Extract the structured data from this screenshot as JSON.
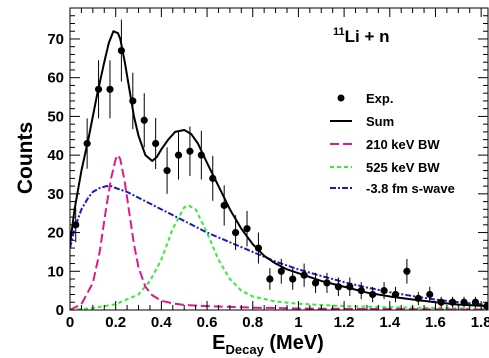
{
  "chart_data": {
    "type": "line",
    "title": "",
    "annotation": {
      "mass": "11",
      "label": "Li + n"
    },
    "xlabel": {
      "main": "E",
      "sub": "Decay",
      "unit": " (MeV)"
    },
    "ylabel": "Counts",
    "xlim": [
      0,
      1.83
    ],
    "ylim": [
      0,
      78
    ],
    "xticks": [
      0,
      0.2,
      0.4,
      0.6,
      0.8,
      1,
      1.2,
      1.4,
      1.6,
      1.8
    ],
    "yticks": [
      0,
      10,
      20,
      30,
      40,
      50,
      60,
      70
    ],
    "xtick_labels": [
      "0",
      "0.2",
      "0.4",
      "0.6",
      "0.8",
      "1",
      "1.2",
      "1.4",
      "1.6",
      "1.8"
    ],
    "ytick_labels": [
      "0",
      "10",
      "20",
      "30",
      "40",
      "50",
      "60",
      "70"
    ],
    "legend_position": "right",
    "legend": [
      {
        "name": "Exp.",
        "marker": "point"
      },
      {
        "name": "Sum",
        "style": "solid",
        "color": "#000000"
      },
      {
        "name": "210 keV BW",
        "style": "long-dash",
        "color": "#e0198b"
      },
      {
        "name": "525 keV BW",
        "style": "dash",
        "color": "#33ee33"
      },
      {
        "name": "-3.8 fm s-wave",
        "style": "dash-dot",
        "color": "#1a1acc"
      }
    ],
    "experimental": {
      "x": [
        0.025,
        0.075,
        0.125,
        0.175,
        0.225,
        0.275,
        0.325,
        0.375,
        0.425,
        0.475,
        0.525,
        0.575,
        0.625,
        0.675,
        0.725,
        0.775,
        0.825,
        0.875,
        0.925,
        0.975,
        1.025,
        1.075,
        1.125,
        1.175,
        1.225,
        1.275,
        1.325,
        1.375,
        1.425,
        1.475,
        1.525,
        1.575,
        1.625,
        1.675,
        1.725,
        1.775,
        1.825
      ],
      "y": [
        22,
        43,
        57,
        57,
        67,
        54,
        49,
        43,
        36,
        40,
        41,
        40,
        34,
        27,
        20,
        21,
        16,
        8,
        10,
        8,
        9,
        7,
        7,
        6,
        6,
        5,
        4,
        5,
        4,
        10,
        3,
        4,
        2,
        2,
        2,
        2,
        1
      ],
      "yerr": [
        4.5,
        6.5,
        7.5,
        7.5,
        8,
        7.3,
        7,
        6.6,
        6,
        6.3,
        6.4,
        6.3,
        5.8,
        5.2,
        4.5,
        4.6,
        4,
        2.8,
        3.2,
        2.8,
        3,
        2.6,
        2.6,
        2.4,
        2.4,
        2.2,
        2,
        2.2,
        2,
        3.2,
        1.7,
        2,
        1.4,
        1.4,
        1.4,
        1.4,
        1
      ]
    },
    "series": [
      {
        "name": "Sum",
        "x": [
          0,
          0.02,
          0.05,
          0.08,
          0.1,
          0.12,
          0.15,
          0.17,
          0.19,
          0.21,
          0.22,
          0.24,
          0.26,
          0.28,
          0.3,
          0.33,
          0.36,
          0.38,
          0.4,
          0.43,
          0.46,
          0.5,
          0.53,
          0.56,
          0.6,
          0.65,
          0.7,
          0.75,
          0.8,
          0.85,
          0.9,
          0.95,
          1,
          1.1,
          1.2,
          1.3,
          1.4,
          1.5,
          1.6,
          1.7,
          1.83
        ],
        "y": [
          17,
          26,
          36,
          44,
          50,
          56,
          64,
          69,
          72,
          71.5,
          70,
          64,
          57,
          50,
          45,
          40,
          38.5,
          39.5,
          41.5,
          44,
          46,
          46.5,
          45.5,
          43,
          38,
          32,
          26,
          21,
          17,
          14,
          12,
          10.5,
          9.5,
          7.5,
          6,
          4.5,
          3.5,
          2.7,
          2,
          1.4,
          1
        ]
      },
      {
        "name": "210 keV BW",
        "x": [
          0,
          0.05,
          0.1,
          0.13,
          0.16,
          0.18,
          0.2,
          0.21,
          0.22,
          0.24,
          0.26,
          0.28,
          0.3,
          0.33,
          0.36,
          0.4,
          0.45,
          0.5,
          0.6,
          0.7,
          0.8,
          1,
          1.2,
          1.5,
          1.83
        ],
        "y": [
          0,
          1.5,
          7,
          15,
          27,
          34,
          39,
          40,
          39,
          33,
          25,
          17,
          11,
          6,
          3.8,
          2.4,
          1.7,
          1.3,
          1,
          0.8,
          0.6,
          0.4,
          0.3,
          0.2,
          0.1
        ]
      },
      {
        "name": "525 keV BW",
        "x": [
          0,
          0.1,
          0.2,
          0.3,
          0.35,
          0.4,
          0.45,
          0.5,
          0.52,
          0.55,
          0.6,
          0.65,
          0.7,
          0.75,
          0.8,
          0.9,
          1,
          1.2,
          1.4,
          1.6,
          1.83
        ],
        "y": [
          0,
          0.5,
          1.5,
          4,
          7.5,
          13,
          21,
          26.5,
          27,
          26,
          20,
          13,
          8,
          5,
          3.5,
          2.2,
          1.6,
          1,
          0.7,
          0.5,
          0.3
        ]
      },
      {
        "name": "-3.8 fm s-wave",
        "x": [
          0,
          0.02,
          0.05,
          0.08,
          0.1,
          0.13,
          0.16,
          0.18,
          0.2,
          0.25,
          0.3,
          0.35,
          0.4,
          0.45,
          0.5,
          0.6,
          0.7,
          0.8,
          0.9,
          1,
          1.1,
          1.2,
          1.3,
          1.4,
          1.5,
          1.6,
          1.7,
          1.83
        ],
        "y": [
          16,
          21,
          26,
          29,
          30.5,
          31.5,
          32,
          32,
          31.5,
          30.5,
          29,
          27.5,
          26,
          24.5,
          23,
          20,
          17.5,
          15,
          12.5,
          10.5,
          8.8,
          7.2,
          5.8,
          4.6,
          3.6,
          2.7,
          2,
          1.3
        ]
      }
    ]
  }
}
